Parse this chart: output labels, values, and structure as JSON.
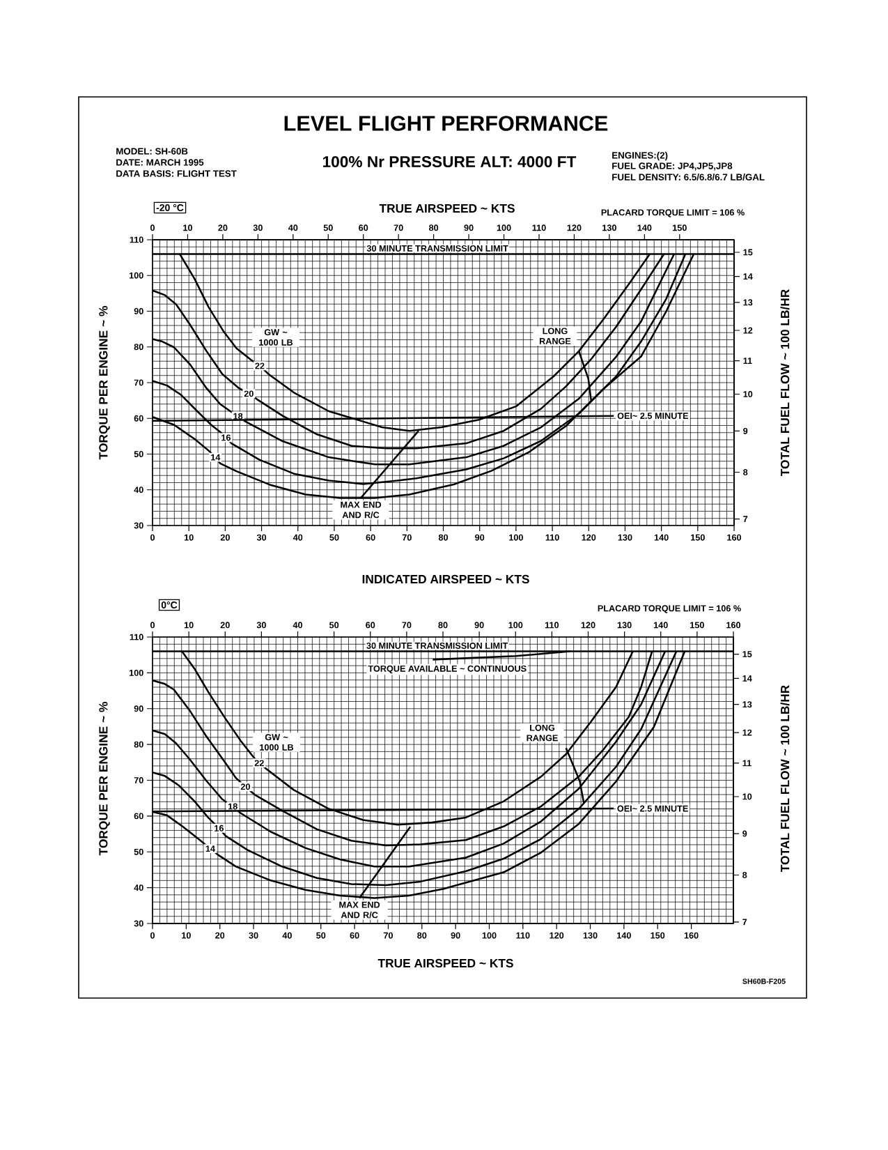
{
  "chart_data": [
    {
      "type": "line",
      "title": "LEVEL FLIGHT PERFORMANCE",
      "subtitle": "100% Nr   PRESSURE ALT: 4000 FT",
      "annotations": [
        "MODEL: SH-60B",
        "DATE: MARCH 1995",
        "DATA BASIS: FLIGHT TEST",
        "ENGINES:(2)",
        "FUEL GRADE: JP4,JP5,JP8",
        "FUEL DENSITY: 6.5/6.8/6.7 LB/GAL",
        "-20 °C",
        "PLACARD TORQUE LIMIT = 106 %",
        "GW ~ 1000 LB"
      ],
      "xlabel": "INDICATED AIRSPEED ~ KTS",
      "x2label": "TRUE AIRSPEED ~ KTS",
      "ylabel": "TORQUE PER ENGINE ~ %",
      "y2label": "TOTAL FUEL FLOW ~ 100 LB/HR",
      "xlim": [
        0,
        160
      ],
      "xticks": [
        0,
        10,
        20,
        30,
        40,
        50,
        60,
        70,
        80,
        90,
        100,
        110,
        120,
        130,
        140,
        150,
        160
      ],
      "x2lim": [
        0,
        165.5
      ],
      "x2ticks": [
        0,
        10,
        20,
        30,
        40,
        50,
        60,
        70,
        80,
        90,
        100,
        110,
        120,
        130,
        140,
        150
      ],
      "ylim": [
        30,
        110
      ],
      "yticks": [
        30,
        40,
        50,
        60,
        70,
        80,
        90,
        100,
        110
      ],
      "y2lim": [
        6.87,
        15.55
      ],
      "y2ticks": [
        7,
        8,
        9,
        10,
        11,
        12,
        13,
        14,
        15
      ],
      "log": "y2",
      "grid": true,
      "series": [
        {
          "name": "22",
          "color": "#000000",
          "x": [
            7.5,
            11.6,
            15.4,
            19.5,
            23.1,
            27.2,
            29.5,
            31.9,
            38.9,
            48.5,
            58.0,
            63.1,
            70.7,
            79.5,
            89.8,
            100.1,
            110.4,
            117.3,
            124.1,
            131.0,
            136.8
          ],
          "values": [
            106,
            99.0,
            91.2,
            84.4,
            79.6,
            76.3,
            74.7,
            72.4,
            67.2,
            62.0,
            59.1,
            57.5,
            56.5,
            57.5,
            59.6,
            63.4,
            71.8,
            78.8,
            87.8,
            97.5,
            106
          ]
        },
        {
          "name": "20",
          "color": "#000000",
          "x": [
            0,
            3.4,
            6.5,
            10.4,
            14.8,
            19.2,
            23.7,
            26.5,
            28.8,
            35.8,
            45.3,
            54.8,
            64.3,
            72.6,
            86.3,
            96.6,
            106.9,
            113.8,
            120.7,
            127.6,
            134.4,
            140.7
          ],
          "values": [
            95.8,
            94.5,
            91.9,
            86.1,
            78.9,
            72.4,
            68.5,
            66.9,
            65.3,
            60.7,
            55.5,
            52.3,
            51.6,
            51.6,
            53.0,
            56.5,
            62.7,
            69.0,
            76.6,
            85.7,
            96.1,
            106
          ]
        },
        {
          "name": "18",
          "color": "#000000",
          "x": [
            0,
            2.7,
            5.9,
            10.4,
            14.8,
            18.6,
            21.4,
            23.5,
            25.6,
            35.8,
            48.5,
            61.2,
            70.7,
            86.3,
            96.6,
            106.9,
            117.3,
            127.6,
            134.4,
            143.5
          ],
          "values": [
            82.2,
            81.5,
            79.9,
            75.0,
            68.5,
            64.0,
            62.0,
            60.6,
            59.1,
            53.6,
            49.1,
            47.1,
            47.1,
            49.1,
            52.3,
            57.5,
            65.5,
            77.3,
            87.1,
            106
          ]
        },
        {
          "name": "16",
          "color": "#000000",
          "x": [
            0,
            4.0,
            7.8,
            12.3,
            16.1,
            18.6,
            20.2,
            21.7,
            29.4,
            38.9,
            48.5,
            58.0,
            67.5,
            72.6,
            86.3,
            96.6,
            106.9,
            117.3,
            127.6,
            134.4,
            141.3,
            146.6
          ],
          "values": [
            70.5,
            69.2,
            66.6,
            62.0,
            58.2,
            56.2,
            54.6,
            53.0,
            48.4,
            44.5,
            42.6,
            41.6,
            42.6,
            43.2,
            45.7,
            48.8,
            53.7,
            61.3,
            71.8,
            81.5,
            93.4,
            106
          ]
        },
        {
          "name": "14",
          "color": "#000000",
          "x": [
            0,
            5.9,
            11.6,
            15.4,
            17.3,
            18.6,
            23.1,
            32.6,
            42.1,
            51.6,
            61.2,
            70.7,
            82.9,
            93.2,
            103.5,
            113.8,
            124.1,
            134.4,
            141.3,
            148.9
          ],
          "values": [
            60.4,
            58.2,
            54.2,
            51.0,
            49.1,
            47.4,
            45.2,
            41.3,
            38.7,
            37.7,
            37.7,
            38.7,
            41.5,
            45.3,
            50.5,
            57.9,
            68.3,
            77.3,
            89.9,
            106
          ]
        },
        {
          "name": "MAX END AND R/C",
          "color": "#000000",
          "x": [
            57.3,
            73.2
          ],
          "values": [
            37.7,
            56.5
          ]
        },
        {
          "name": "LONG RANGE",
          "color": "#000000",
          "x": [
            117.3,
            119.9,
            120.7
          ],
          "values": [
            78.8,
            71.1,
            64.8
          ]
        },
        {
          "name": "OEI~ 2.5 MINUTE",
          "color": "#000000",
          "x": [
            0,
            126.9
          ],
          "values": [
            59.3,
            60.7
          ]
        },
        {
          "name": "30 MINUTE TRANSMISSION LIMIT",
          "color": "#000000",
          "x": [
            0,
            160
          ],
          "values": [
            106,
            106
          ]
        }
      ]
    },
    {
      "type": "line",
      "annotations": [
        "0°C",
        "PLACARD TORQUE LIMIT = 106 %",
        "GW ~ 1000 LB",
        "SH60B-F205"
      ],
      "x2label": "TRUE AIRSPEED ~ KTS",
      "ylabel": "TORQUE PER ENGINE ~ %",
      "y2label": "TOTAL FUEL FLOW ~ 100 LB/HR",
      "xlim": [
        0,
        160
      ],
      "xticks": [
        0,
        10,
        20,
        30,
        40,
        50,
        60,
        70,
        80,
        90,
        100,
        110,
        120,
        130,
        140,
        150,
        160
      ],
      "x2lim": [
        0,
        172.5
      ],
      "x2ticks": [
        0,
        10,
        20,
        30,
        40,
        50,
        60,
        70,
        80,
        90,
        100,
        110,
        120,
        130,
        140,
        150,
        160
      ],
      "ylim": [
        30,
        110
      ],
      "yticks": [
        30,
        40,
        50,
        60,
        70,
        80,
        90,
        100,
        110
      ],
      "y2lim": [
        6.97,
        15.75
      ],
      "y2ticks": [
        7,
        8,
        9,
        10,
        11,
        12,
        13,
        14,
        15
      ],
      "log": "y2",
      "grid": true,
      "series": [
        {
          "name": "22",
          "color": "#000000",
          "x": [
            8.1,
            11.6,
            15.4,
            19.9,
            24.3,
            28.1,
            29.4,
            31.3,
            38.9,
            48.4,
            58.0,
            67.5,
            77.0,
            86.3,
            96.7,
            107.0,
            113.9,
            120.8,
            127.7,
            132.3
          ],
          "values": [
            106,
            101.1,
            94.6,
            87.5,
            81.0,
            76.1,
            74.8,
            73.2,
            67.3,
            62.1,
            58.9,
            57.6,
            58.2,
            59.6,
            64.1,
            71.0,
            77.3,
            86.4,
            96.1,
            106
          ]
        },
        {
          "name": "20",
          "color": "#000000",
          "x": [
            0,
            3.4,
            5.9,
            10.3,
            14.8,
            19.9,
            23.0,
            25.6,
            28.1,
            35.7,
            45.3,
            54.8,
            64.3,
            73.8,
            86.3,
            96.7,
            107.0,
            117.4,
            124.3,
            131.2,
            134.6,
            137.6
          ],
          "values": [
            97.9,
            96.9,
            95.3,
            89.4,
            82.3,
            75.1,
            70.6,
            68.2,
            66.0,
            61.5,
            56.3,
            53.1,
            51.8,
            52.1,
            53.3,
            57.1,
            62.7,
            71.0,
            78.7,
            87.7,
            96.1,
            106
          ]
        },
        {
          "name": "18",
          "color": "#000000",
          "x": [
            0,
            3.4,
            6.5,
            10.3,
            14.8,
            19.2,
            22.1,
            24.3,
            32.6,
            42.1,
            51.6,
            61.1,
            70.7,
            86.3,
            96.7,
            107.0,
            117.4,
            127.7,
            134.6,
            141.2
          ],
          "values": [
            83.9,
            82.9,
            80.3,
            75.8,
            69.9,
            64.7,
            62.7,
            60.8,
            55.6,
            51.1,
            47.9,
            45.9,
            45.9,
            48.4,
            52.3,
            58.5,
            67.6,
            80.8,
            91.2,
            106
          ]
        },
        {
          "name": "16",
          "color": "#000000",
          "x": [
            0,
            3.4,
            7.2,
            11.6,
            15.4,
            18.3,
            20.2,
            26.2,
            35.7,
            45.3,
            54.8,
            64.3,
            73.8,
            86.3,
            96.7,
            107.0,
            117.4,
            127.7,
            134.6,
            144.3
          ],
          "values": [
            72.2,
            71.2,
            68.6,
            64.1,
            59.5,
            56.6,
            54.4,
            50.5,
            45.9,
            42.7,
            41.0,
            40.7,
            41.7,
            44.6,
            48.1,
            53.6,
            62.0,
            73.8,
            84.3,
            106
          ]
        },
        {
          "name": "14",
          "color": "#000000",
          "x": [
            0,
            4.0,
            8.4,
            12.9,
            15.9,
            18.0,
            23.0,
            32.6,
            42.1,
            51.6,
            61.1,
            70.7,
            80.2,
            96.7,
            107.0,
            117.4,
            127.7,
            138.1,
            146.6
          ],
          "values": [
            61.2,
            60.2,
            57.0,
            53.4,
            50.9,
            49.2,
            45.9,
            42.0,
            39.4,
            37.8,
            37.1,
            37.8,
            39.7,
            44.3,
            49.8,
            57.8,
            69.7,
            84.9,
            106
          ]
        },
        {
          "name": "MAX END AND R/C",
          "color": "#000000",
          "x": [
            57.0,
            71.0
          ],
          "values": [
            37.1,
            57.0
          ]
        },
        {
          "name": "LONG RANGE",
          "color": "#000000",
          "x": [
            113.9,
            117.7,
            118.8
          ],
          "values": [
            79.0,
            69.7,
            63.7
          ]
        },
        {
          "name": "OEI~ 2.5 MINUTE",
          "color": "#000000",
          "x": [
            0,
            127.0
          ],
          "values": [
            61.3,
            62.1
          ]
        },
        {
          "name": "TORQUE AVAILABLE ~ CONTINUOUS",
          "color": "#000000",
          "x": [
            77.2,
            100.1,
            115.0
          ],
          "values": [
            103.7,
            104.7,
            106
          ]
        },
        {
          "name": "30 MINUTE TRANSMISSION LIMIT",
          "color": "#000000",
          "x": [
            0,
            160
          ],
          "values": [
            106,
            106
          ]
        }
      ]
    }
  ]
}
